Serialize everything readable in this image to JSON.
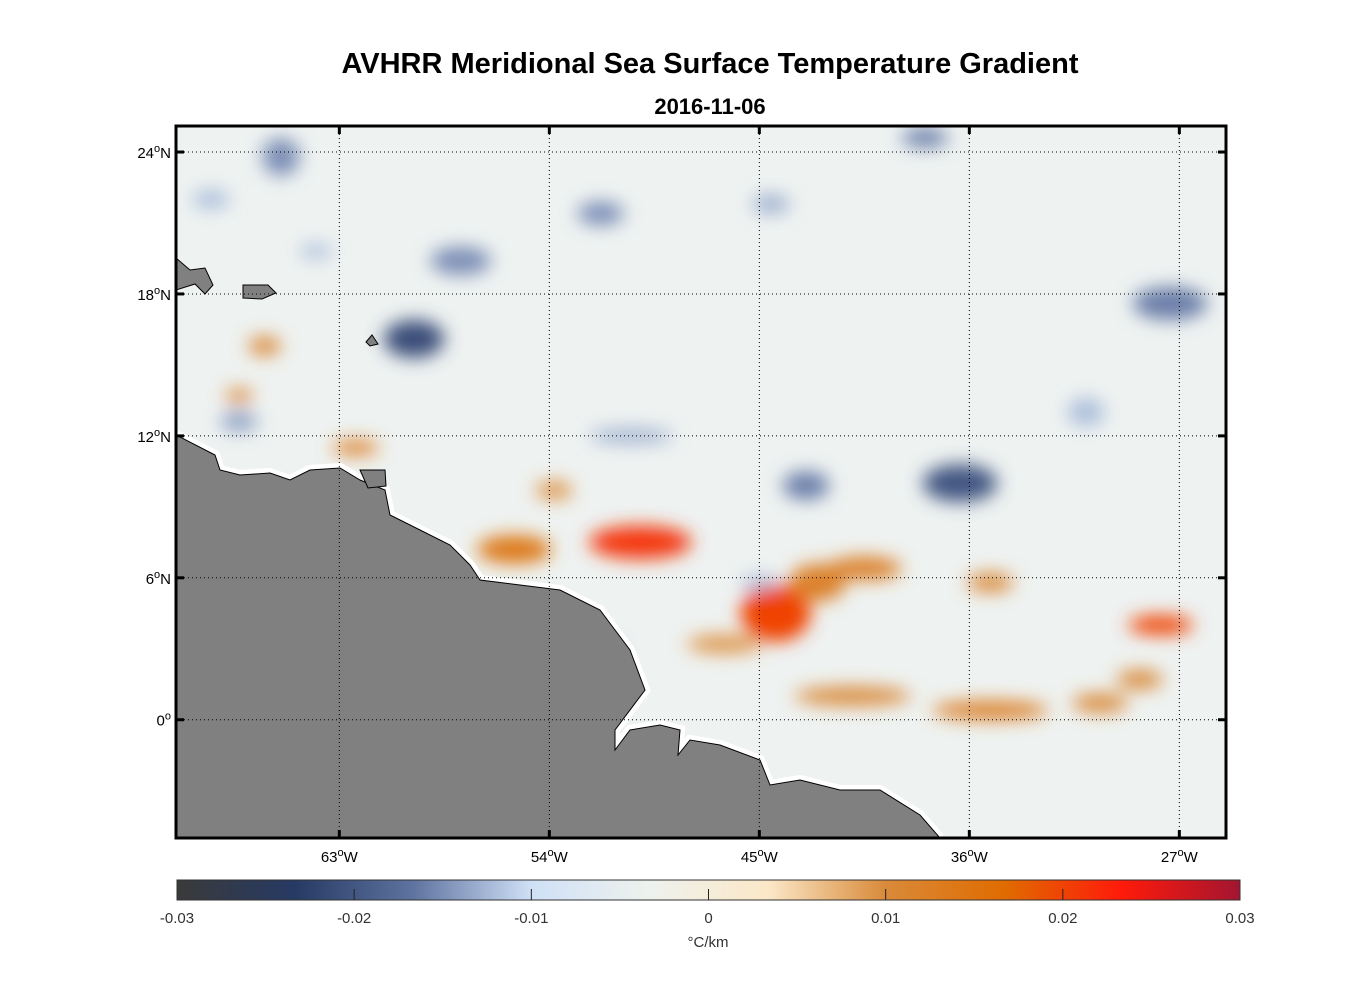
{
  "title": "AVHRR Meridional Sea Surface Temperature Gradient",
  "subtitle": "2016-11-06",
  "chart_data": {
    "type": "heatmap",
    "projection": "lon-lat map",
    "xlim": [
      -70,
      -25
    ],
    "ylim": [
      -5,
      25.1
    ],
    "x_ticks": [
      {
        "value": -63,
        "label": "63",
        "suffix": "W"
      },
      {
        "value": -54,
        "label": "54",
        "suffix": "W"
      },
      {
        "value": -45,
        "label": "45",
        "suffix": "W"
      },
      {
        "value": -36,
        "label": "36",
        "suffix": "W"
      },
      {
        "value": -27,
        "label": "27",
        "suffix": "W"
      }
    ],
    "y_ticks": [
      {
        "value": 0,
        "label": "0",
        "suffix": ""
      },
      {
        "value": 6,
        "label": "6",
        "suffix": "N"
      },
      {
        "value": 12,
        "label": "12",
        "suffix": "N"
      },
      {
        "value": 18,
        "label": "18",
        "suffix": "N"
      },
      {
        "value": 24,
        "label": "24",
        "suffix": "N"
      }
    ],
    "grid": true,
    "land_color": "#808080",
    "features": [
      {
        "lon": -50.1,
        "lat": 7.5,
        "value": 0.021,
        "rx": 2.2,
        "ry": 0.7
      },
      {
        "lon": -44.3,
        "lat": 4.5,
        "value": 0.02,
        "rx": 1.5,
        "ry": 1.2
      },
      {
        "lon": -42.5,
        "lat": 5.8,
        "value": 0.012,
        "rx": 1.2,
        "ry": 0.8
      },
      {
        "lon": -40.5,
        "lat": 6.4,
        "value": 0.012,
        "rx": 1.6,
        "ry": 0.5
      },
      {
        "lon": -27.8,
        "lat": 4.0,
        "value": 0.02,
        "rx": 1.4,
        "ry": 0.4
      },
      {
        "lon": -55.5,
        "lat": 7.2,
        "value": 0.014,
        "rx": 1.6,
        "ry": 0.6
      },
      {
        "lon": -62.3,
        "lat": 11.5,
        "value": 0.013,
        "rx": 1.0,
        "ry": 0.3
      },
      {
        "lon": -66.2,
        "lat": 15.8,
        "value": 0.01,
        "rx": 0.7,
        "ry": 0.4
      },
      {
        "lon": -67.3,
        "lat": 13.7,
        "value": 0.01,
        "rx": 0.6,
        "ry": 0.3
      },
      {
        "lon": -35.1,
        "lat": 5.8,
        "value": 0.01,
        "rx": 1.0,
        "ry": 0.4
      },
      {
        "lon": -35.1,
        "lat": 0.4,
        "value": 0.012,
        "rx": 2.5,
        "ry": 0.4
      },
      {
        "lon": -41.0,
        "lat": 1.0,
        "value": 0.01,
        "rx": 2.5,
        "ry": 0.4
      },
      {
        "lon": -30.4,
        "lat": 0.7,
        "value": 0.01,
        "rx": 1.2,
        "ry": 0.4
      },
      {
        "lon": -28.7,
        "lat": 1.7,
        "value": 0.01,
        "rx": 1.0,
        "ry": 0.4
      },
      {
        "lon": -46.5,
        "lat": 3.2,
        "value": 0.009,
        "rx": 1.6,
        "ry": 0.4
      },
      {
        "lon": -53.8,
        "lat": 9.7,
        "value": 0.009,
        "rx": 0.8,
        "ry": 0.4
      },
      {
        "lon": -59.8,
        "lat": 16.1,
        "value": -0.021,
        "rx": 1.3,
        "ry": 0.8
      },
      {
        "lon": -36.4,
        "lat": 10.0,
        "value": -0.02,
        "rx": 1.6,
        "ry": 0.8
      },
      {
        "lon": -43.0,
        "lat": 9.9,
        "value": -0.016,
        "rx": 1.0,
        "ry": 0.6
      },
      {
        "lon": -27.4,
        "lat": 17.6,
        "value": -0.016,
        "rx": 1.6,
        "ry": 0.7
      },
      {
        "lon": -57.8,
        "lat": 19.4,
        "value": -0.015,
        "rx": 1.3,
        "ry": 0.6
      },
      {
        "lon": -51.8,
        "lat": 21.4,
        "value": -0.015,
        "rx": 1.0,
        "ry": 0.5
      },
      {
        "lon": -65.5,
        "lat": 23.8,
        "value": -0.015,
        "rx": 0.8,
        "ry": 0.8
      },
      {
        "lon": -37.9,
        "lat": 24.6,
        "value": -0.016,
        "rx": 1.0,
        "ry": 0.4
      },
      {
        "lon": -67.3,
        "lat": 12.6,
        "value": -0.014,
        "rx": 0.8,
        "ry": 0.4
      },
      {
        "lon": -44.5,
        "lat": 21.8,
        "value": -0.013,
        "rx": 0.8,
        "ry": 0.4
      },
      {
        "lon": -50.5,
        "lat": 12.0,
        "value": -0.013,
        "rx": 1.8,
        "ry": 0.3
      },
      {
        "lon": -31.0,
        "lat": 13.0,
        "value": -0.012,
        "rx": 0.8,
        "ry": 0.6
      },
      {
        "lon": -52.0,
        "lat": 3.0,
        "value": -0.012,
        "rx": 1.2,
        "ry": 0.4
      },
      {
        "lon": -45.0,
        "lat": 5.8,
        "value": -0.012,
        "rx": 0.8,
        "ry": 0.3
      },
      {
        "lon": -68.5,
        "lat": 22.0,
        "value": -0.012,
        "rx": 0.8,
        "ry": 0.4
      },
      {
        "lon": -64.0,
        "lat": 19.8,
        "value": -0.012,
        "rx": 0.7,
        "ry": 0.3
      }
    ],
    "colorbar": {
      "min": -0.03,
      "max": 0.03,
      "ticks": [
        "-0.03",
        "-0.02",
        "-0.01",
        "0",
        "0.01",
        "0.02",
        "0.03"
      ],
      "label": "°C/km",
      "stops": [
        "#3a3a3a",
        "#263a64",
        "#5f73a0",
        "#cfe0f6",
        "#eef2ee",
        "#fbe8c8",
        "#d98a3a",
        "#e06c00",
        "#ff1a0a",
        "#a31530"
      ]
    }
  }
}
